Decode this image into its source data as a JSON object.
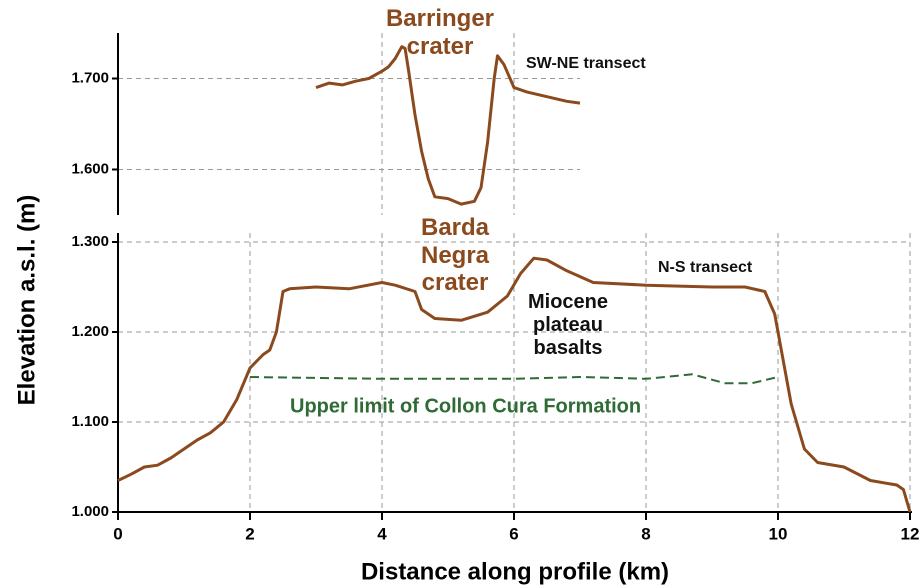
{
  "chart_data": [
    {
      "type": "line",
      "xlim": [
        0,
        7
      ],
      "xticks": [
        4,
        6
      ],
      "ylim": [
        1550,
        1750
      ],
      "yticks": [
        {
          "value": 1600,
          "label": "1.600"
        },
        {
          "value": 1700,
          "label": "1.700"
        }
      ],
      "grid": true,
      "annotations": [
        "Barringer crater"
      ],
      "series": [
        {
          "name": "SW-NE transect",
          "color": "#8b4a1e",
          "linestyle": "solid",
          "x": [
            3.0,
            3.2,
            3.4,
            3.6,
            3.8,
            4.0,
            4.1,
            4.2,
            4.3,
            4.35,
            4.4,
            4.5,
            4.6,
            4.7,
            4.8,
            5.0,
            5.2,
            5.4,
            5.5,
            5.6,
            5.7,
            5.75,
            5.85,
            6.0,
            6.2,
            6.5,
            6.8,
            7.0
          ],
          "values": [
            1690,
            1695,
            1693,
            1697,
            1700,
            1708,
            1713,
            1722,
            1735,
            1733,
            1710,
            1660,
            1620,
            1590,
            1570,
            1568,
            1562,
            1565,
            1580,
            1630,
            1700,
            1725,
            1715,
            1690,
            1685,
            1680,
            1675,
            1673
          ]
        }
      ]
    },
    {
      "type": "line",
      "xlabel": "Distance along profile (km)",
      "ylabel": "Elevation a.s.l. (m)",
      "xlim": [
        0,
        12
      ],
      "xticks": [
        0,
        2,
        4,
        6,
        8,
        10,
        12
      ],
      "ylim": [
        1000,
        1310
      ],
      "yticks": [
        {
          "value": 1000,
          "label": "1.000"
        },
        {
          "value": 1100,
          "label": "1.100"
        },
        {
          "value": 1200,
          "label": "1.200"
        },
        {
          "value": 1300,
          "label": "1.300"
        }
      ],
      "grid": true,
      "annotations": [
        "Barda Negra crater",
        "Miocene plateau basalts"
      ],
      "series": [
        {
          "name": "N-S transect",
          "color": "#8b4a1e",
          "linestyle": "solid",
          "x": [
            0,
            0.2,
            0.4,
            0.6,
            0.8,
            1.0,
            1.2,
            1.4,
            1.6,
            1.8,
            2.0,
            2.2,
            2.3,
            2.4,
            2.5,
            2.6,
            3.0,
            3.5,
            4.0,
            4.2,
            4.5,
            4.6,
            4.8,
            5.2,
            5.6,
            5.9,
            6.1,
            6.3,
            6.5,
            6.8,
            7.2,
            8,
            9,
            9.5,
            9.8,
            9.95,
            10.05,
            10.2,
            10.4,
            10.6,
            11,
            11.4,
            11.8,
            11.9,
            12
          ],
          "values": [
            1035,
            1042,
            1050,
            1052,
            1060,
            1070,
            1080,
            1088,
            1100,
            1125,
            1160,
            1175,
            1180,
            1200,
            1245,
            1248,
            1250,
            1248,
            1255,
            1252,
            1245,
            1225,
            1215,
            1213,
            1222,
            1240,
            1265,
            1282,
            1280,
            1268,
            1255,
            1252,
            1250,
            1250,
            1245,
            1220,
            1180,
            1120,
            1070,
            1055,
            1050,
            1035,
            1030,
            1025,
            1000
          ]
        },
        {
          "name": "Upper limit of Collon Cura Formation",
          "color": "#2e6b35",
          "linestyle": "dashed",
          "x": [
            2,
            4,
            6,
            7,
            8,
            8.7,
            9.2,
            9.6,
            10
          ],
          "values": [
            1150,
            1148,
            1148,
            1150,
            1148,
            1153,
            1143,
            1143,
            1150
          ]
        }
      ]
    }
  ]
}
